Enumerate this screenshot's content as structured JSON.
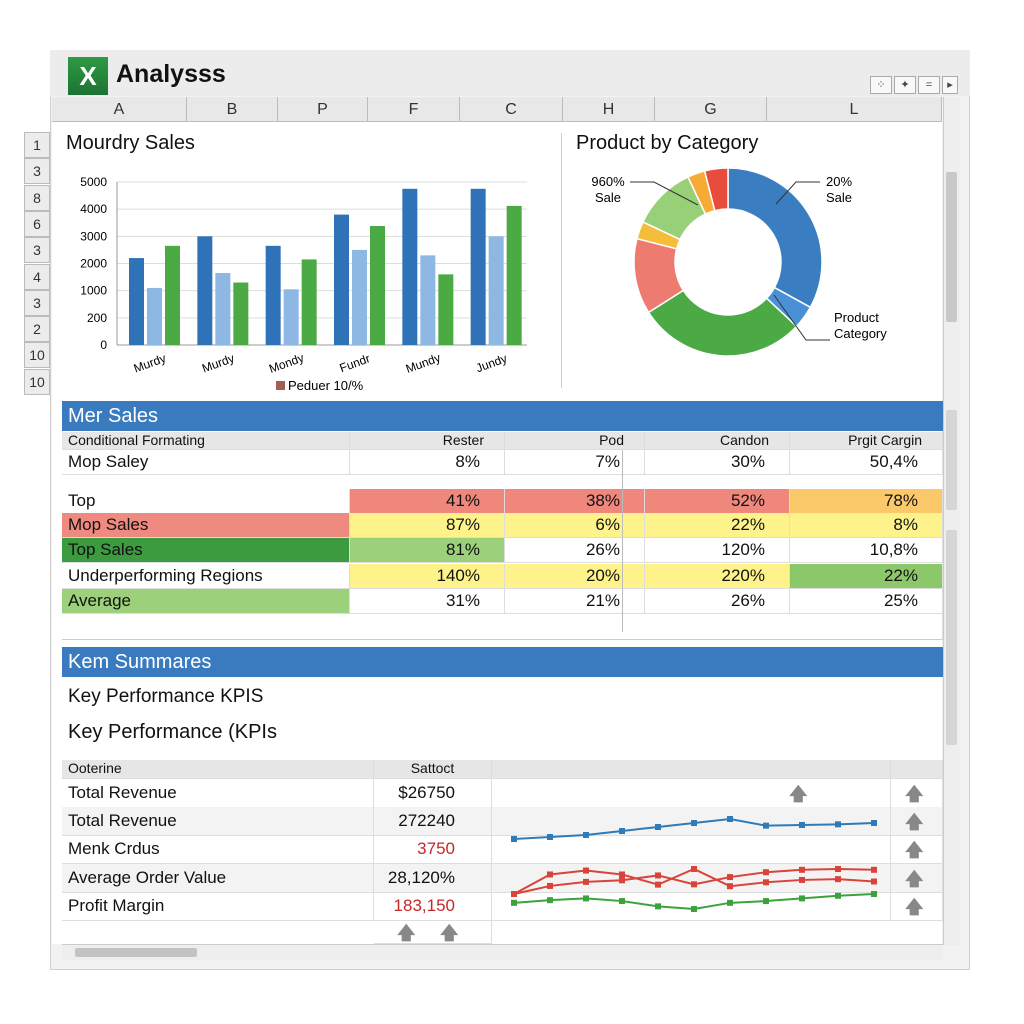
{
  "app": {
    "title": "Analysss",
    "logo_letter": "X",
    "window_buttons": [
      "⁘",
      "✦",
      "=",
      "▸"
    ]
  },
  "columns": [
    "A",
    "B",
    "P",
    "F",
    "C",
    "H",
    "G",
    "L"
  ],
  "row_headers": [
    "1",
    "3",
    "8",
    "6",
    "3",
    "4",
    "3",
    "2",
    "10",
    "10"
  ],
  "chart_data": [
    {
      "type": "bar",
      "title": "Mourdry Sales",
      "categories": [
        "Murdy",
        "Murdy",
        "Mondy",
        "Fundr",
        "Mundy",
        "Jundy"
      ],
      "yticks": [
        "0",
        "200",
        "1000",
        "2000",
        "3000",
        "4000",
        "5000"
      ],
      "series": [
        {
          "color": "#2f72b8",
          "values": [
            2200,
            3000,
            2650,
            3800,
            4750,
            4750
          ]
        },
        {
          "color": "#8db8e3",
          "values": [
            1100,
            1650,
            1050,
            2500,
            2300,
            3000
          ]
        },
        {
          "color": "#4caa45",
          "values": [
            2650,
            1300,
            2150,
            3380,
            1600,
            4120
          ]
        }
      ],
      "legend": {
        "label": "Peduer 10/%",
        "color": "#a0614f",
        "placement": "bottom"
      },
      "grid": true
    },
    {
      "type": "pie",
      "title": "Product by Category",
      "donut": true,
      "slices": [
        {
          "value": 33,
          "color": "#3a7dc0"
        },
        {
          "value": 4,
          "color": "#4a90d6"
        },
        {
          "value": 29,
          "color": "#4caa45"
        },
        {
          "value": 13,
          "color": "#ee7b70"
        },
        {
          "value": 3,
          "color": "#f5bd3a"
        },
        {
          "value": 11,
          "color": "#97d077"
        },
        {
          "value": 3,
          "color": "#f6ab35"
        },
        {
          "value": 4,
          "color": "#e84c3d"
        }
      ],
      "labels": [
        {
          "line1": "960%",
          "line2": "Sale"
        },
        {
          "line1": "20%",
          "line2": "Sale"
        },
        {
          "line1": "Product",
          "line2": "Category"
        }
      ]
    }
  ],
  "mer": {
    "title": "Mer Sales",
    "headers": [
      "Conditional Formating",
      "Rester",
      "Pod",
      "Candon",
      "Prgit Cargin"
    ],
    "first_row": [
      "Mop Saley",
      "8%",
      "7%",
      "30%",
      "50,4%"
    ],
    "rows": [
      {
        "cells": [
          "Top",
          "41%",
          "38%",
          "52%",
          "78%"
        ],
        "colors": [
          "",
          "#f0877c",
          "#f0877c",
          "#f0877c",
          "#fbc96a"
        ]
      },
      {
        "cells": [
          "Mop Sales",
          "87%",
          "6%",
          "22%",
          "8%"
        ],
        "colors": [
          "#ef8a80",
          "#fdf38a",
          "#fdf38a",
          "#fdf38a",
          "#fdf38a"
        ]
      },
      {
        "cells": [
          "Top Sales",
          "81%",
          "26%",
          "120%",
          "10,8%"
        ],
        "colors": [
          "#3c9a3f",
          "#9dd07b",
          "",
          "",
          ""
        ]
      },
      {
        "cells": [
          "Underperforming Regions",
          "140%",
          "20%",
          "220%",
          "22%"
        ],
        "colors": [
          "",
          "#fdf38a",
          "#fdf38a",
          "#fdf38a",
          "#8cc86a"
        ]
      },
      {
        "cells": [
          "Average",
          "31%",
          "21%",
          "26%",
          "25%"
        ],
        "colors": [
          "#9dd07b",
          "",
          "",
          "",
          ""
        ]
      }
    ]
  },
  "kem": {
    "title": "Kem Summares",
    "kpi1": "Key Performance KPIS",
    "kpi2": "Key Performance (KPIs",
    "headers": [
      "Ooterine",
      "Sattoct"
    ],
    "rows": [
      {
        "label": "Total Revenue",
        "value": "$26750",
        "red": false
      },
      {
        "label": "Total Revenue",
        "value": "272240",
        "red": false
      },
      {
        "label": "Menk Crdus",
        "value": "3750",
        "red": true
      },
      {
        "label": "Average Order Value",
        "value": "28,120%",
        "red": false
      },
      {
        "label": "Profit Margin",
        "value": "183,150",
        "red": true
      }
    ],
    "sparklines": [
      {
        "color": "#2f7bb8",
        "values": [
          2,
          2.3,
          2.6,
          3.2,
          3.8,
          4.4,
          5,
          4,
          4.1,
          4.2,
          4.4
        ]
      },
      {
        "color": "#d9433a",
        "values": [
          2,
          4.5,
          5,
          4.5,
          3.2,
          5.2,
          3,
          3.5,
          3.8,
          3.9,
          3.6
        ]
      },
      {
        "color": "#d9433a",
        "values": [
          1.5,
          2.5,
          3,
          3.2,
          3.8,
          2.7,
          3.6,
          4.2,
          4.5,
          4.6,
          4.5
        ]
      },
      {
        "color": "#3aa33d",
        "values": [
          1,
          1.3,
          1.5,
          1.2,
          0.6,
          0.3,
          1,
          1.2,
          1.5,
          1.8,
          2
        ]
      }
    ]
  }
}
